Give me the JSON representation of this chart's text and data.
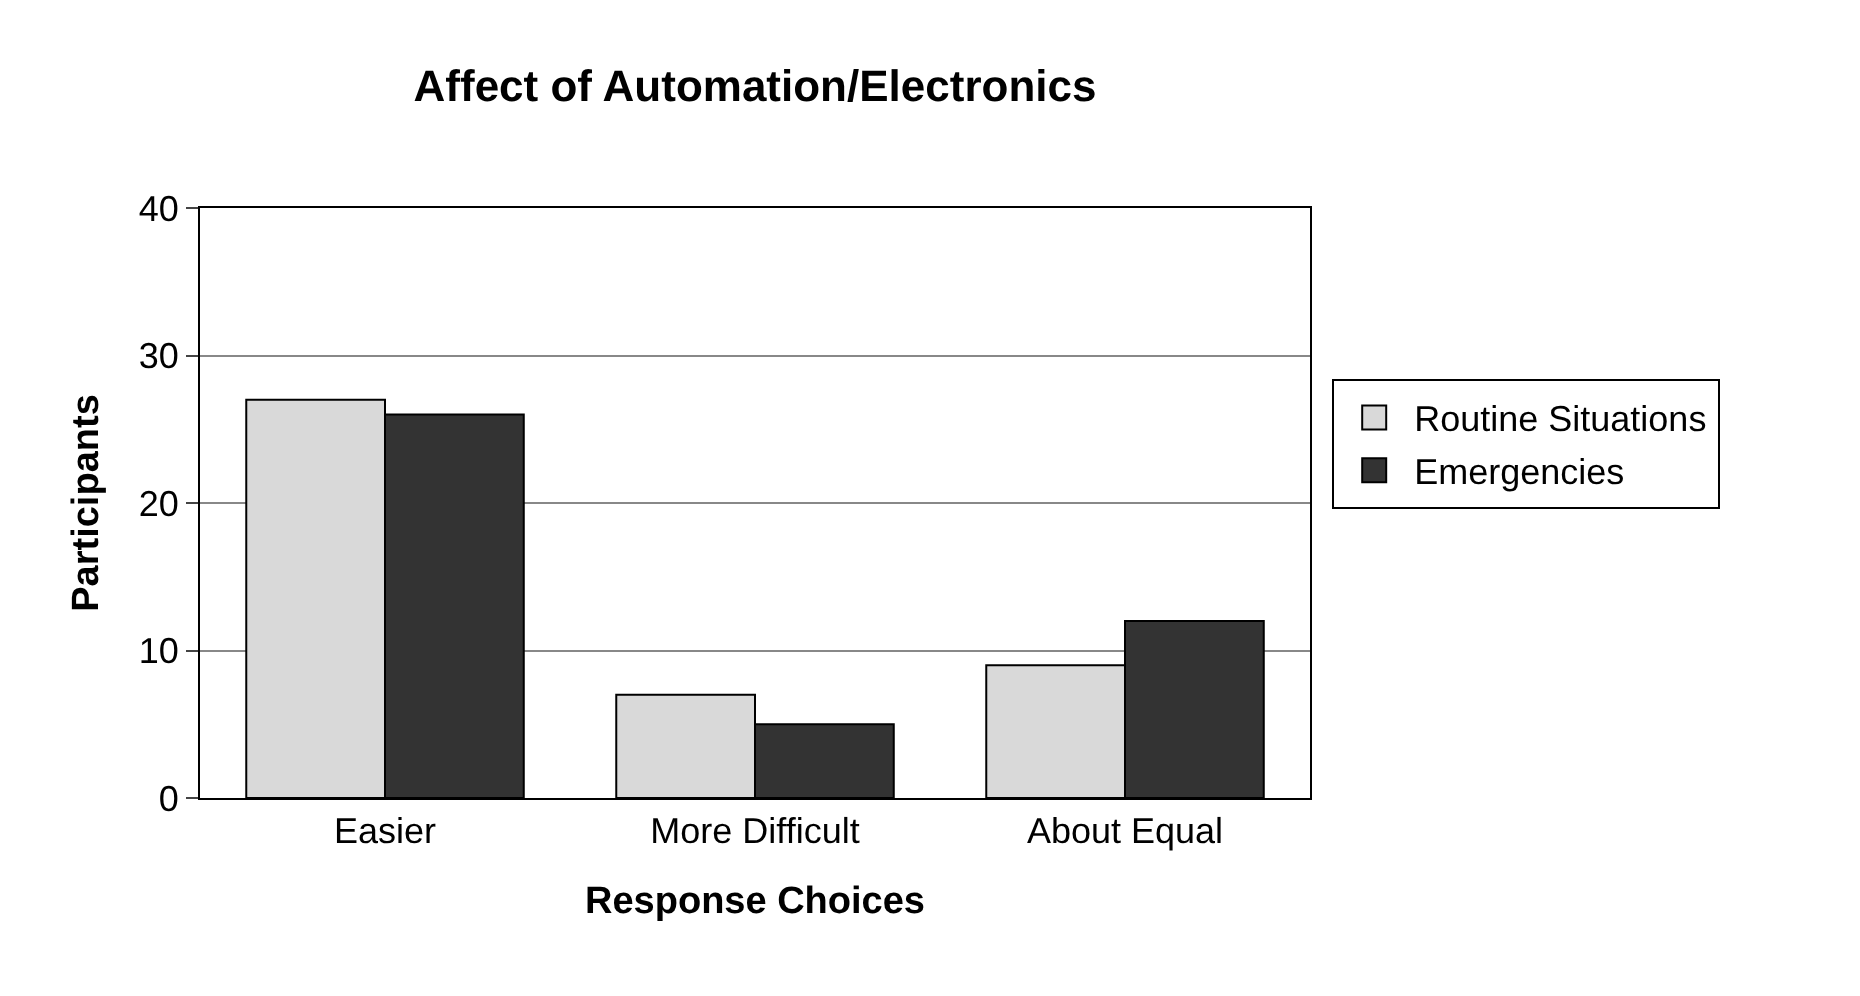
{
  "chart_data": {
    "type": "bar",
    "title": "Affect of Automation/Electronics",
    "xlabel": "Response Choices",
    "ylabel": "Participants",
    "categories": [
      "Easier",
      "More Difficult",
      "About Equal"
    ],
    "series": [
      {
        "name": "Routine Situations",
        "color": "#d9d9d9",
        "values": [
          27,
          7,
          9
        ]
      },
      {
        "name": "Emergencies",
        "color": "#333333",
        "values": [
          26,
          5,
          12
        ]
      }
    ],
    "ylim": [
      0,
      40
    ],
    "yticks": [
      0,
      10,
      20,
      30,
      40
    ],
    "grid": "y",
    "legend": "right"
  }
}
